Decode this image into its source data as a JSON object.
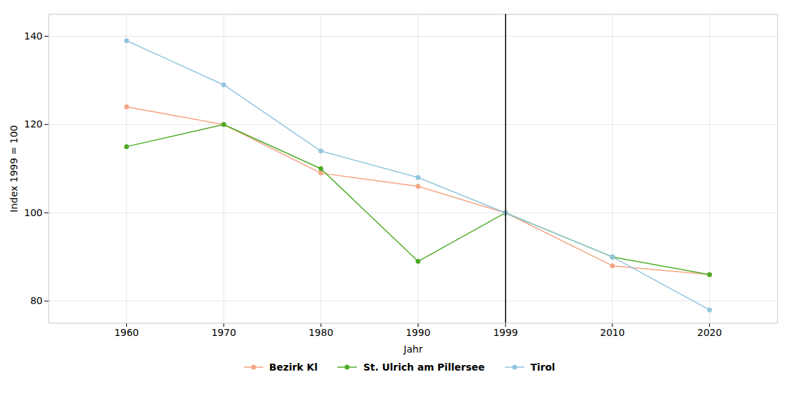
{
  "chart_data": {
    "type": "line",
    "x": [
      1960,
      1970,
      1980,
      1990,
      1999,
      2010,
      2020
    ],
    "series": [
      {
        "name": "Bezirk Kl",
        "color": "#F4A582",
        "values": [
          124,
          120,
          109,
          106,
          100,
          88,
          86
        ]
      },
      {
        "name": "St. Ulrich am Pillersee",
        "color": "#4DAC26",
        "values": [
          115,
          120,
          110,
          89,
          100,
          90,
          86
        ]
      },
      {
        "name": "Tirol",
        "color": "#92C5DE",
        "values": [
          139,
          129,
          114,
          108,
          100,
          90,
          78
        ]
      }
    ],
    "xlabel": "Jahr",
    "ylabel": "Index 1999 = 100",
    "xlim": [
      1952,
      2027
    ],
    "xticks": [
      1960,
      1970,
      1980,
      1990,
      1999,
      2010,
      2020
    ],
    "ylim": [
      75,
      145
    ],
    "yticks": [
      80,
      100,
      120,
      140
    ],
    "vline": 1999,
    "grid": true,
    "legend": "bottom",
    "marker": "circle"
  }
}
